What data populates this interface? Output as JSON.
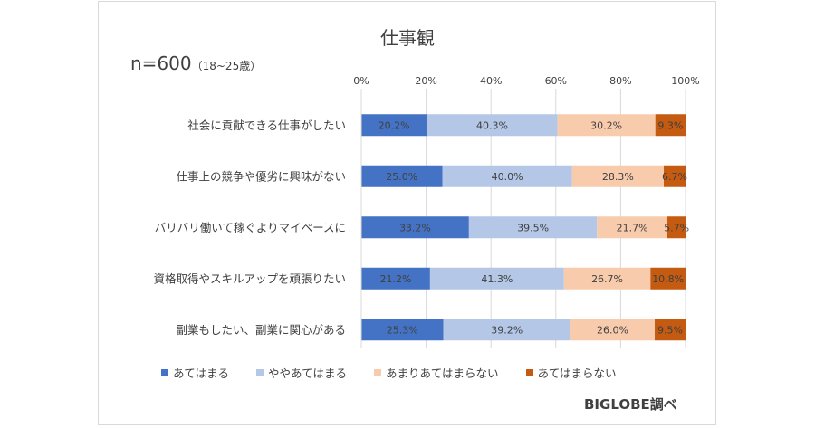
{
  "chart_data": {
    "type": "bar",
    "orientation": "horizontal-stacked-100",
    "title": "仕事観",
    "sample": "n=600",
    "sample_note": "（18~25歳）",
    "source": "BIGLOBE調べ",
    "xlim": [
      0,
      100
    ],
    "x_ticks": [
      "0%",
      "20%",
      "40%",
      "60%",
      "80%",
      "100%"
    ],
    "grid": true,
    "legend_position": "bottom",
    "categories": [
      "社会に貢献できる仕事がしたい",
      "仕事上の競争や優劣に興味がない",
      "バリバリ働いて稼ぐよりマイペースに",
      "資格取得やスキルアップを頑張りたい",
      "副業もしたい、副業に関心がある"
    ],
    "series": [
      {
        "name": "あてはまる",
        "color": "#4472c4",
        "values": [
          20.2,
          25.0,
          33.2,
          21.2,
          25.3
        ],
        "labels": [
          "20.2%",
          "25.0%",
          "33.2%",
          "21.2%",
          "25.3%"
        ]
      },
      {
        "name": "ややあてはまる",
        "color": "#b4c7e7",
        "values": [
          40.3,
          40.0,
          39.5,
          41.3,
          39.2
        ],
        "labels": [
          "40.3%",
          "40.0%",
          "39.5%",
          "41.3%",
          "39.2%"
        ]
      },
      {
        "name": "あまりあてはまらない",
        "color": "#f8cbad",
        "values": [
          30.2,
          28.3,
          21.7,
          26.7,
          26.0
        ],
        "labels": [
          "30.2%",
          "28.3%",
          "21.7%",
          "26.7%",
          "26.0%"
        ]
      },
      {
        "name": "あてはまらない",
        "color": "#c55a11",
        "values": [
          9.3,
          6.7,
          5.7,
          10.8,
          9.5
        ],
        "labels": [
          "9.3%",
          "6.7%",
          "5.7%",
          "10.8%",
          "9.5%"
        ]
      }
    ]
  }
}
